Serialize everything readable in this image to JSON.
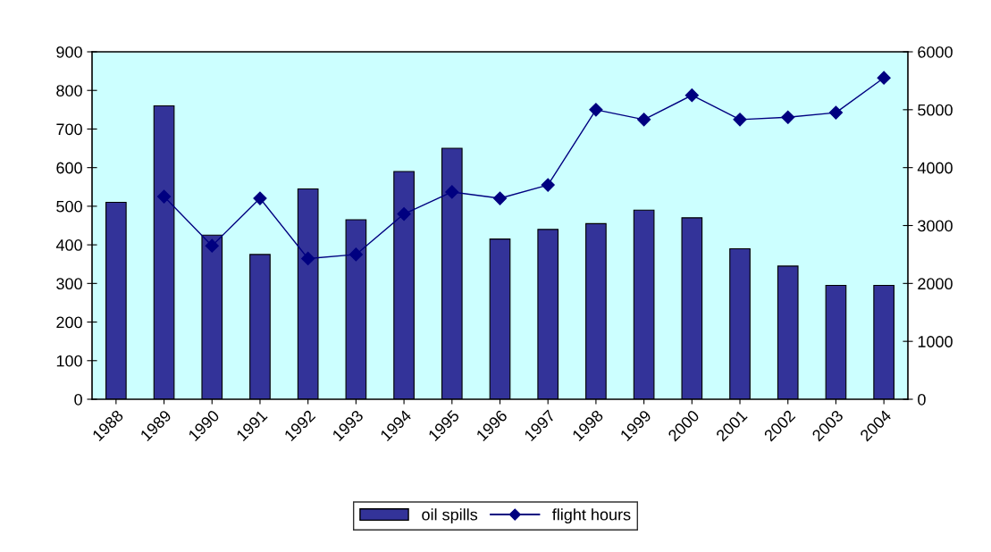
{
  "chart_data": {
    "type": "bar",
    "categories": [
      "1988",
      "1989",
      "1990",
      "1991",
      "1992",
      "1993",
      "1994",
      "1995",
      "1996",
      "1997",
      "1998",
      "1999",
      "2000",
      "2001",
      "2002",
      "2003",
      "2004"
    ],
    "series": [
      {
        "name": "oil spills",
        "color": "#333399",
        "values": [
          510,
          760,
          425,
          375,
          545,
          465,
          590,
          650,
          415,
          440,
          455,
          490,
          470,
          390,
          345,
          295,
          295
        ]
      },
      {
        "name": "flight hours",
        "type": "line",
        "axis": "y2",
        "color": "#000080",
        "marker": "diamond",
        "values": [
          null,
          3500,
          2650,
          3470,
          2430,
          2500,
          3200,
          3580,
          3470,
          3700,
          5000,
          4830,
          5250,
          4830,
          4870,
          4950,
          5550
        ]
      }
    ],
    "ylim": [
      0,
      900
    ],
    "yticks": [
      0,
      100,
      200,
      300,
      400,
      500,
      600,
      700,
      800,
      900
    ],
    "y2lim": [
      0,
      6000
    ],
    "y2ticks": [
      0,
      1000,
      2000,
      3000,
      4000,
      5000,
      6000
    ],
    "grid": false,
    "legend": "bottom"
  }
}
